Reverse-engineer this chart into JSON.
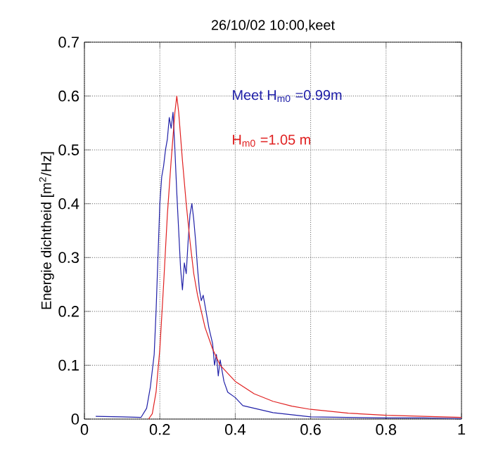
{
  "chart_data": {
    "type": "line",
    "title": "26/10/02 10:00,keet",
    "ylabel": "Energie dichtheid [m$^{2}$/Hz]",
    "xlim": [
      0,
      1
    ],
    "xticks": [
      0,
      0.2,
      0.4,
      0.6,
      0.8,
      1
    ],
    "ylim": [
      0,
      0.7
    ],
    "yticks": [
      0,
      0.1,
      0.2,
      0.3,
      0.4,
      0.5,
      0.6,
      0.7
    ],
    "grid": true,
    "legend": false,
    "series": [
      {
        "name": "Meet H$_{m0}$ =0.99m",
        "color": "#2020a8",
        "x": [
          0.03,
          0.1,
          0.15,
          0.165,
          0.175,
          0.185,
          0.19,
          0.195,
          0.2,
          0.205,
          0.21,
          0.215,
          0.22,
          0.225,
          0.23,
          0.235,
          0.24,
          0.245,
          0.25,
          0.255,
          0.26,
          0.265,
          0.27,
          0.275,
          0.28,
          0.285,
          0.29,
          0.295,
          0.3,
          0.305,
          0.31,
          0.315,
          0.32,
          0.33,
          0.34,
          0.345,
          0.35,
          0.355,
          0.36,
          0.37,
          0.38,
          0.4,
          0.42,
          0.45,
          0.5,
          0.55,
          0.6,
          0.7,
          0.8,
          0.9,
          1.0
        ],
        "values": [
          0.005,
          0.004,
          0.003,
          0.02,
          0.06,
          0.12,
          0.2,
          0.3,
          0.4,
          0.45,
          0.47,
          0.5,
          0.52,
          0.56,
          0.54,
          0.57,
          0.5,
          0.42,
          0.35,
          0.28,
          0.24,
          0.29,
          0.27,
          0.33,
          0.38,
          0.4,
          0.37,
          0.33,
          0.28,
          0.24,
          0.22,
          0.23,
          0.21,
          0.17,
          0.14,
          0.1,
          0.12,
          0.08,
          0.11,
          0.07,
          0.05,
          0.04,
          0.025,
          0.02,
          0.012,
          0.008,
          0.004,
          0.003,
          0.002,
          0.002,
          0.001
        ]
      },
      {
        "name": "H$_{m0}$ =1.05 m",
        "color": "#e02020",
        "x": [
          0.17,
          0.18,
          0.19,
          0.2,
          0.21,
          0.22,
          0.23,
          0.24,
          0.245,
          0.25,
          0.26,
          0.27,
          0.28,
          0.29,
          0.3,
          0.32,
          0.34,
          0.36,
          0.38,
          0.4,
          0.45,
          0.5,
          0.55,
          0.6,
          0.7,
          0.8,
          0.9,
          1.0
        ],
        "values": [
          0,
          0.01,
          0.05,
          0.13,
          0.25,
          0.38,
          0.48,
          0.57,
          0.6,
          0.57,
          0.48,
          0.4,
          0.33,
          0.27,
          0.23,
          0.17,
          0.13,
          0.1,
          0.085,
          0.07,
          0.047,
          0.033,
          0.024,
          0.018,
          0.011,
          0.007,
          0.005,
          0.003
        ]
      }
    ]
  }
}
